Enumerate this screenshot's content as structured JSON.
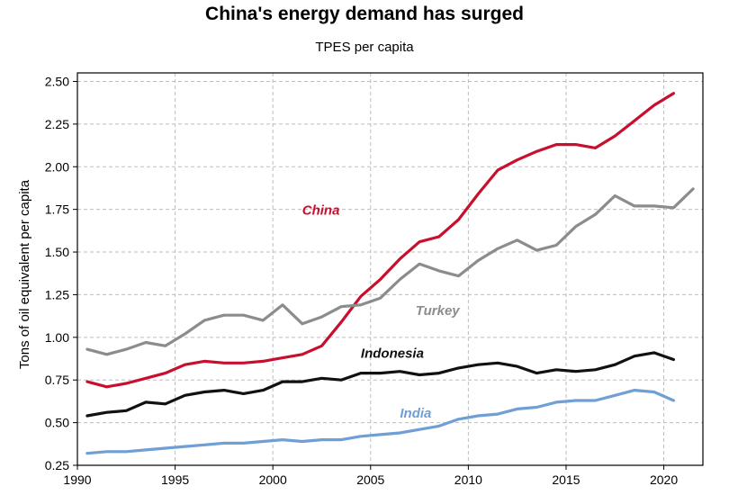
{
  "chart_data": {
    "type": "line",
    "title": "China's energy demand has surged",
    "subtitle": "TPES per capita",
    "xlabel": "",
    "ylabel": "Tons of oil equivalent per capita",
    "xlim": [
      1990,
      2022
    ],
    "ylim": [
      0.25,
      2.55
    ],
    "xticks": [
      1990,
      1995,
      2000,
      2005,
      2010,
      2015,
      2020
    ],
    "yticks": [
      "0.25",
      "0.50",
      "0.75",
      "1.00",
      "1.25",
      "1.50",
      "1.75",
      "2.00",
      "2.25",
      "2.50"
    ],
    "grid": true,
    "series": [
      {
        "name": "China",
        "color": "#c8102e",
        "label_at": [
          2001.5,
          1.72
        ],
        "x": [
          1990.5,
          1991.5,
          1992.5,
          1993.5,
          1994.5,
          1995.5,
          1996.5,
          1997.5,
          1998.5,
          1999.5,
          2000.5,
          2001.5,
          2002.5,
          2003.5,
          2004.5,
          2005.5,
          2006.5,
          2007.5,
          2008.5,
          2009.5,
          2010.5,
          2011.5,
          2012.5,
          2013.5,
          2014.5,
          2015.5,
          2016.5,
          2017.5,
          2018.5,
          2019.5,
          2020.5
        ],
        "y": [
          0.74,
          0.71,
          0.73,
          0.76,
          0.79,
          0.84,
          0.86,
          0.85,
          0.85,
          0.86,
          0.88,
          0.9,
          0.95,
          1.09,
          1.24,
          1.34,
          1.46,
          1.56,
          1.59,
          1.69,
          1.84,
          1.98,
          2.04,
          2.09,
          2.13,
          2.13,
          2.11,
          2.18,
          2.27,
          2.36,
          2.43
        ]
      },
      {
        "name": "Turkey",
        "color": "#8c8c8c",
        "label_at": [
          2007.3,
          1.13
        ],
        "x": [
          1990.5,
          1991.5,
          1992.5,
          1993.5,
          1994.5,
          1995.5,
          1996.5,
          1997.5,
          1998.5,
          1999.5,
          2000.5,
          2001.5,
          2002.5,
          2003.5,
          2004.5,
          2005.5,
          2006.5,
          2007.5,
          2008.5,
          2009.5,
          2010.5,
          2011.5,
          2012.5,
          2013.5,
          2014.5,
          2015.5,
          2016.5,
          2017.5,
          2018.5,
          2019.5,
          2020.5,
          2021.5
        ],
        "y": [
          0.93,
          0.9,
          0.93,
          0.97,
          0.95,
          1.02,
          1.1,
          1.13,
          1.13,
          1.1,
          1.19,
          1.08,
          1.12,
          1.18,
          1.19,
          1.23,
          1.34,
          1.43,
          1.39,
          1.36,
          1.45,
          1.52,
          1.57,
          1.51,
          1.54,
          1.65,
          1.72,
          1.83,
          1.77,
          1.77,
          1.76,
          1.87
        ]
      },
      {
        "name": "Indonesia",
        "color": "#111111",
        "label_at": [
          2004.5,
          0.88
        ],
        "x": [
          1990.5,
          1991.5,
          1992.5,
          1993.5,
          1994.5,
          1995.5,
          1996.5,
          1997.5,
          1998.5,
          1999.5,
          2000.5,
          2001.5,
          2002.5,
          2003.5,
          2004.5,
          2005.5,
          2006.5,
          2007.5,
          2008.5,
          2009.5,
          2010.5,
          2011.5,
          2012.5,
          2013.5,
          2014.5,
          2015.5,
          2016.5,
          2017.5,
          2018.5,
          2019.5,
          2020.5
        ],
        "y": [
          0.54,
          0.56,
          0.57,
          0.62,
          0.61,
          0.66,
          0.68,
          0.69,
          0.67,
          0.69,
          0.74,
          0.74,
          0.76,
          0.75,
          0.79,
          0.79,
          0.8,
          0.78,
          0.79,
          0.82,
          0.84,
          0.85,
          0.83,
          0.79,
          0.81,
          0.8,
          0.81,
          0.84,
          0.89,
          0.91,
          0.87
        ]
      },
      {
        "name": "India",
        "color": "#6f9fd5",
        "label_at": [
          2006.5,
          0.53
        ],
        "x": [
          1990.5,
          1991.5,
          1992.5,
          1993.5,
          1994.5,
          1995.5,
          1996.5,
          1997.5,
          1998.5,
          1999.5,
          2000.5,
          2001.5,
          2002.5,
          2003.5,
          2004.5,
          2005.5,
          2006.5,
          2007.5,
          2008.5,
          2009.5,
          2010.5,
          2011.5,
          2012.5,
          2013.5,
          2014.5,
          2015.5,
          2016.5,
          2017.5,
          2018.5,
          2019.5,
          2020.5
        ],
        "y": [
          0.32,
          0.33,
          0.33,
          0.34,
          0.35,
          0.36,
          0.37,
          0.38,
          0.38,
          0.39,
          0.4,
          0.39,
          0.4,
          0.4,
          0.42,
          0.43,
          0.44,
          0.46,
          0.48,
          0.52,
          0.54,
          0.55,
          0.58,
          0.59,
          0.62,
          0.63,
          0.63,
          0.66,
          0.69,
          0.68,
          0.63
        ]
      }
    ]
  }
}
